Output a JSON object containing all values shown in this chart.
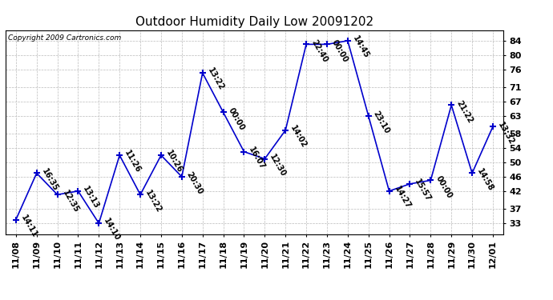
{
  "title": "Outdoor Humidity Daily Low 20091202",
  "copyright": "Copyright 2009 Cartronics.com",
  "x_labels": [
    "11/08",
    "11/09",
    "11/10",
    "11/11",
    "11/12",
    "11/13",
    "11/14",
    "11/15",
    "11/16",
    "11/17",
    "11/18",
    "11/19",
    "11/20",
    "11/21",
    "11/22",
    "11/23",
    "11/24",
    "11/25",
    "11/26",
    "11/27",
    "11/28",
    "11/29",
    "11/30",
    "12/01"
  ],
  "y_values": [
    34,
    47,
    41,
    42,
    33,
    52,
    41,
    52,
    46,
    75,
    64,
    53,
    51,
    59,
    83,
    83,
    84,
    63,
    42,
    44,
    45,
    66,
    47,
    60
  ],
  "point_labels": [
    "14:11",
    "16:35",
    "12:35",
    "13:13",
    "14:10",
    "11:26",
    "13:22",
    "10:26",
    "20:30",
    "13:22",
    "00:00",
    "16:07",
    "12:30",
    "14:02",
    "22:40",
    "00:00",
    "14:45",
    "23:10",
    "14:27",
    "15:57",
    "00:00",
    "21:22",
    "14:58",
    "13:32"
  ],
  "y_ticks": [
    33,
    37,
    42,
    46,
    50,
    54,
    58,
    63,
    67,
    71,
    76,
    80,
    84
  ],
  "y_min": 30,
  "y_max": 87,
  "line_color": "#0000cc",
  "marker_color": "#0000cc",
  "bg_color": "#ffffff",
  "grid_color": "#bbbbbb",
  "title_fontsize": 11,
  "axis_fontsize": 8,
  "label_fontsize": 7
}
